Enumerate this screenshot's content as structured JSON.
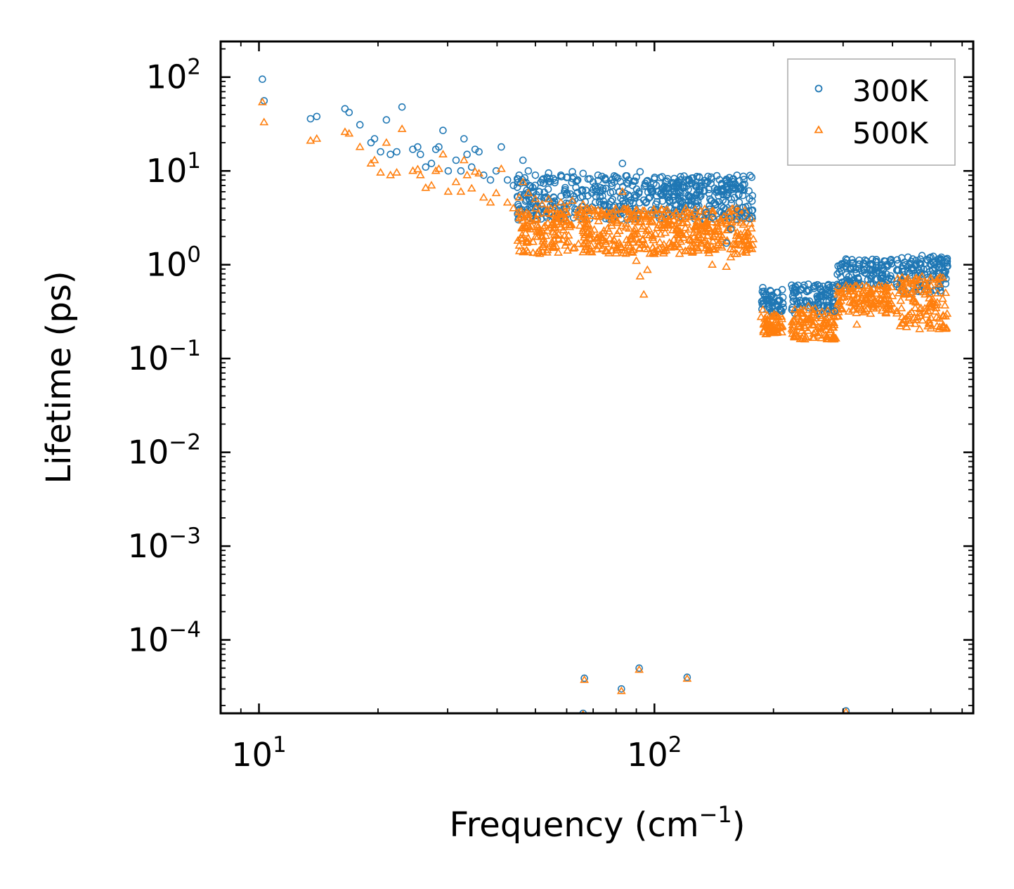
{
  "chart_data": {
    "type": "scatter",
    "title": "",
    "xlabel": "Frequency (cm",
    "xlabel_sup": "−1",
    "xlabel_end": ")",
    "ylabel": "Lifetime (ps)",
    "xscale": "log",
    "yscale": "log",
    "xlim": [
      8,
      640
    ],
    "ylim": [
      1.65e-05,
      240
    ],
    "legend_position": "top-right",
    "x_ticks": [
      {
        "value": 10,
        "base": "10",
        "exp": "1"
      },
      {
        "value": 100,
        "base": "10",
        "exp": "2"
      }
    ],
    "y_ticks": [
      {
        "value": 100,
        "base": "10",
        "exp": "2"
      },
      {
        "value": 10,
        "base": "10",
        "exp": "1"
      },
      {
        "value": 1,
        "base": "10",
        "exp": "0"
      },
      {
        "value": 0.1,
        "base": "10",
        "exp": "−1"
      },
      {
        "value": 0.01,
        "base": "10",
        "exp": "−2"
      },
      {
        "value": 0.001,
        "base": "10",
        "exp": "−3"
      },
      {
        "value": 0.0001,
        "base": "10",
        "exp": "−4"
      }
    ],
    "series": [
      {
        "name": "300K",
        "marker": "circle",
        "color": "#1f77b4",
        "points": [
          [
            10.2,
            95
          ],
          [
            10.3,
            56
          ],
          [
            13.5,
            36
          ],
          [
            14,
            38
          ],
          [
            16.5,
            46
          ],
          [
            16.9,
            42
          ],
          [
            18,
            31
          ],
          [
            19.2,
            20
          ],
          [
            19.6,
            22
          ],
          [
            20.3,
            16
          ],
          [
            21,
            35
          ],
          [
            21.5,
            15
          ],
          [
            22.3,
            16
          ],
          [
            23,
            48
          ],
          [
            24.5,
            17
          ],
          [
            25.2,
            18
          ],
          [
            25.6,
            15
          ],
          [
            26.4,
            11
          ],
          [
            27.3,
            12
          ],
          [
            28,
            17
          ],
          [
            28.5,
            18
          ],
          [
            29.2,
            27
          ],
          [
            30.1,
            10
          ],
          [
            31.5,
            13
          ],
          [
            32.4,
            10
          ],
          [
            33,
            22
          ],
          [
            33.6,
            15
          ],
          [
            34.5,
            11
          ],
          [
            35.2,
            17
          ],
          [
            36,
            16
          ],
          [
            37,
            9
          ],
          [
            38.5,
            8
          ],
          [
            39.8,
            10
          ],
          [
            41,
            18
          ],
          [
            42.5,
            8
          ],
          [
            44,
            7
          ],
          [
            45.5,
            9
          ],
          [
            46.5,
            13
          ],
          [
            48,
            10
          ],
          [
            50,
            9
          ],
          [
            52,
            8
          ],
          [
            54,
            9.5
          ],
          [
            56,
            7.5
          ],
          [
            58,
            9
          ],
          [
            60,
            8.5
          ],
          [
            62,
            9.8
          ],
          [
            64,
            8
          ],
          [
            66,
            9.4
          ],
          [
            68,
            8.2
          ],
          [
            70,
            7.6
          ],
          [
            72,
            9
          ],
          [
            75,
            8.4
          ],
          [
            78,
            7.4
          ],
          [
            80,
            8.6
          ],
          [
            83,
            12
          ],
          [
            86,
            8
          ],
          [
            88,
            7
          ],
          [
            90,
            8.6
          ],
          [
            92,
            9.8
          ],
          [
            95,
            7
          ],
          [
            98,
            6.4
          ],
          [
            100,
            8.2
          ],
          [
            104,
            5.8
          ],
          [
            108,
            6.4
          ],
          [
            112,
            6.8
          ],
          [
            116,
            5.4
          ],
          [
            120,
            8
          ],
          [
            124,
            4.8
          ],
          [
            128,
            6.8
          ],
          [
            131,
            5.4
          ],
          [
            135,
            3.6
          ],
          [
            140,
            3.2
          ],
          [
            145,
            6
          ],
          [
            148,
            4.2
          ],
          [
            152,
            1.7
          ],
          [
            156,
            2.4
          ],
          [
            162,
            3.9
          ],
          [
            166,
            3.6
          ],
          [
            170,
            3.3
          ],
          [
            174,
            3.1
          ],
          [
            188,
            0.57
          ],
          [
            192,
            0.42
          ],
          [
            198,
            0.4
          ],
          [
            203,
            0.38
          ],
          [
            210,
            0.32
          ],
          [
            225,
            0.44
          ],
          [
            235,
            0.55
          ],
          [
            245,
            0.62
          ],
          [
            255,
            0.6
          ],
          [
            265,
            0.5
          ],
          [
            272,
            0.4
          ],
          [
            285,
            0.32
          ],
          [
            292,
            0.6
          ],
          [
            298,
            1.0
          ],
          [
            305,
            1.15
          ],
          [
            318,
            1.05
          ],
          [
            335,
            0.86
          ],
          [
            350,
            0.9
          ],
          [
            370,
            0.82
          ],
          [
            390,
            0.68
          ],
          [
            410,
            0.62
          ],
          [
            432,
            1.0
          ],
          [
            450,
            1.15
          ],
          [
            475,
            1.25
          ],
          [
            500,
            1.2
          ],
          [
            525,
            1.1
          ],
          [
            545,
            0.85
          ],
          [
            66.5,
            3.9e-05
          ],
          [
            82.5,
            3e-05
          ],
          [
            91.5,
            5e-05
          ],
          [
            121,
            4e-05
          ],
          [
            66,
            1.65e-05
          ],
          [
            305,
            1.75e-05
          ]
        ]
      },
      {
        "name": "500K",
        "marker": "triangle",
        "color": "#ff7f0e",
        "points": [
          [
            10.2,
            54
          ],
          [
            10.3,
            33
          ],
          [
            13.5,
            21
          ],
          [
            14,
            22
          ],
          [
            16.5,
            26
          ],
          [
            16.9,
            25
          ],
          [
            18,
            18
          ],
          [
            19.2,
            12
          ],
          [
            19.6,
            13
          ],
          [
            20.3,
            9.6
          ],
          [
            21,
            20
          ],
          [
            21.5,
            9
          ],
          [
            22.3,
            9.6
          ],
          [
            23,
            28
          ],
          [
            24.5,
            10
          ],
          [
            25.2,
            10.4
          ],
          [
            25.6,
            9
          ],
          [
            26.4,
            6.6
          ],
          [
            27.3,
            7
          ],
          [
            28,
            10
          ],
          [
            28.5,
            10.5
          ],
          [
            29.2,
            15
          ],
          [
            30.1,
            6
          ],
          [
            31.5,
            7.6
          ],
          [
            32.4,
            6
          ],
          [
            33,
            13
          ],
          [
            33.6,
            9
          ],
          [
            34.5,
            6.5
          ],
          [
            35.2,
            9.8
          ],
          [
            36,
            9.4
          ],
          [
            37,
            5.2
          ],
          [
            38.5,
            4.6
          ],
          [
            39.8,
            5.8
          ],
          [
            41,
            10.5
          ],
          [
            42.5,
            4.6
          ],
          [
            44,
            4
          ],
          [
            45.5,
            5.2
          ],
          [
            46.5,
            7.6
          ],
          [
            48,
            5.8
          ],
          [
            50,
            5
          ],
          [
            52,
            4.4
          ],
          [
            54,
            5
          ],
          [
            56,
            4
          ],
          [
            58,
            4.6
          ],
          [
            60,
            4.2
          ],
          [
            62,
            4.8
          ],
          [
            64,
            3.8
          ],
          [
            66,
            4.4
          ],
          [
            68,
            3.7
          ],
          [
            70,
            3.3
          ],
          [
            72,
            3.8
          ],
          [
            75,
            3.4
          ],
          [
            78,
            2.6
          ],
          [
            80,
            3
          ],
          [
            83,
            6
          ],
          [
            86,
            1.6
          ],
          [
            88,
            1.9
          ],
          [
            90,
            1.1
          ],
          [
            92,
            0.75
          ],
          [
            94,
            0.48
          ],
          [
            96,
            0.88
          ],
          [
            100,
            1.3
          ],
          [
            104,
            2.6
          ],
          [
            108,
            2.8
          ],
          [
            112,
            3
          ],
          [
            116,
            2.2
          ],
          [
            120,
            4
          ],
          [
            124,
            1.8
          ],
          [
            128,
            3.2
          ],
          [
            131,
            2.4
          ],
          [
            135,
            1.5
          ],
          [
            140,
            1.0
          ],
          [
            145,
            2.4
          ],
          [
            148,
            1.8
          ],
          [
            152,
            0.95
          ],
          [
            156,
            1.2
          ],
          [
            162,
            2.2
          ],
          [
            166,
            1.6
          ],
          [
            170,
            1.8
          ],
          [
            174,
            1.5
          ],
          [
            188,
            0.33
          ],
          [
            192,
            0.24
          ],
          [
            198,
            0.22
          ],
          [
            203,
            0.21
          ],
          [
            210,
            0.19
          ],
          [
            225,
            0.26
          ],
          [
            235,
            0.3
          ],
          [
            245,
            0.36
          ],
          [
            255,
            0.34
          ],
          [
            265,
            0.27
          ],
          [
            272,
            0.2
          ],
          [
            285,
            0.16
          ],
          [
            292,
            0.28
          ],
          [
            298,
            0.5
          ],
          [
            305,
            0.6
          ],
          [
            318,
            0.52
          ],
          [
            325,
            0.23
          ],
          [
            335,
            0.44
          ],
          [
            350,
            0.5
          ],
          [
            370,
            0.44
          ],
          [
            390,
            0.36
          ],
          [
            410,
            0.32
          ],
          [
            432,
            0.5
          ],
          [
            450,
            0.62
          ],
          [
            475,
            0.75
          ],
          [
            500,
            0.72
          ],
          [
            525,
            0.62
          ],
          [
            545,
            0.5
          ],
          [
            66.5,
            3.75e-05
          ],
          [
            82.5,
            2.85e-05
          ],
          [
            91.5,
            4.8e-05
          ],
          [
            121,
            3.85e-05
          ],
          [
            66,
            1.6e-05
          ],
          [
            305,
            1.7e-05
          ]
        ]
      }
    ],
    "dense_bands": [
      {
        "series": "300K",
        "x_from": 45,
        "x_to": 178,
        "y_from": 3,
        "y_to": 9
      },
      {
        "series": "500K",
        "x_from": 45,
        "x_to": 178,
        "y_from": 1.3,
        "y_to": 4
      },
      {
        "series": "300K",
        "x_from": 186,
        "x_to": 212,
        "y_from": 0.3,
        "y_to": 0.55
      },
      {
        "series": "500K",
        "x_from": 186,
        "x_to": 212,
        "y_from": 0.18,
        "y_to": 0.3
      },
      {
        "series": "300K",
        "x_from": 222,
        "x_to": 290,
        "y_from": 0.3,
        "y_to": 0.62
      },
      {
        "series": "500K",
        "x_from": 222,
        "x_to": 290,
        "y_from": 0.16,
        "y_to": 0.34
      },
      {
        "series": "300K",
        "x_from": 290,
        "x_to": 400,
        "y_from": 0.55,
        "y_to": 1.15
      },
      {
        "series": "500K",
        "x_from": 290,
        "x_to": 400,
        "y_from": 0.3,
        "y_to": 0.6
      },
      {
        "series": "300K",
        "x_from": 410,
        "x_to": 552,
        "y_from": 0.5,
        "y_to": 1.25
      },
      {
        "series": "500K",
        "x_from": 410,
        "x_to": 552,
        "y_from": 0.2,
        "y_to": 0.75
      }
    ]
  }
}
